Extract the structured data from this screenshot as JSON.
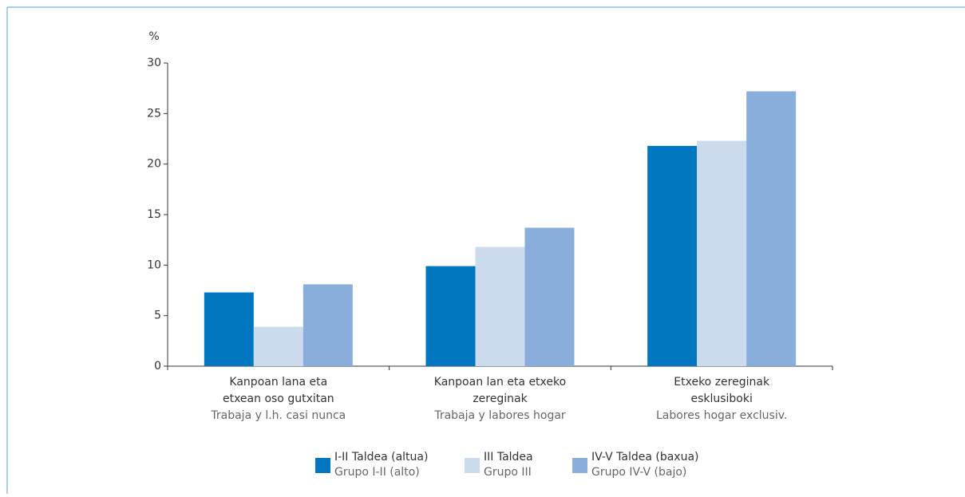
{
  "chart_data": {
    "type": "bar",
    "y_label": "%",
    "categories": [
      [
        "Kanpoan lana eta",
        "etxean oso gutxitan",
        "Trabaja y l.h. casi nunca"
      ],
      [
        "Kanpoan lan eta etxeko",
        "zereginak",
        "Trabaja y labores hogar"
      ],
      [
        "Etxeko zereginak",
        "esklusiboki",
        "Labores hogar exclusiv."
      ]
    ],
    "series": [
      {
        "name": [
          "I-II Taldea (altua)",
          "Grupo I-II (alto)"
        ],
        "color": "#0077c0",
        "values": [
          7.3,
          9.9,
          21.8
        ]
      },
      {
        "name": [
          "III Taldea",
          "Grupo III"
        ],
        "color": "#ccdaee",
        "values": [
          3.9,
          11.8,
          22.3
        ]
      },
      {
        "name": [
          "IV-V Taldea (baxua)",
          "Grupo IV-V (bajo)"
        ],
        "color": "#8aaedc",
        "values": [
          8.1,
          13.7,
          27.2
        ]
      }
    ],
    "ylim": [
      0,
      30
    ],
    "yticks": [
      0,
      5,
      10,
      15,
      20,
      25,
      30
    ]
  }
}
